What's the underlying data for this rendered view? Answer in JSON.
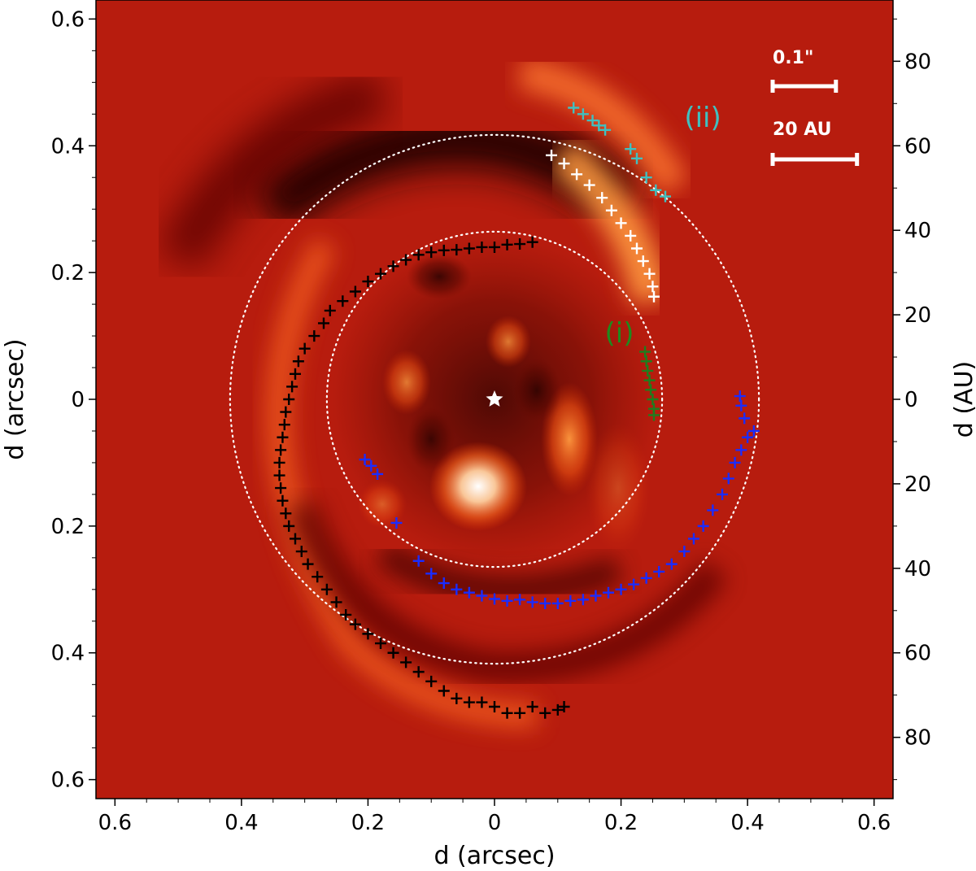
{
  "chart_data": {
    "type": "scatter",
    "title": "",
    "xlabel": "d (arcsec)",
    "ylabel": "d (arcsec)",
    "ylabel_right": "d (AU)",
    "xlim": [
      -0.63,
      0.63
    ],
    "ylim": [
      -0.63,
      0.63
    ],
    "x_ticks": [
      {
        "v": -0.6,
        "label": "0.6"
      },
      {
        "v": -0.4,
        "label": "0.4"
      },
      {
        "v": -0.2,
        "label": "0.2"
      },
      {
        "v": 0,
        "label": "0"
      },
      {
        "v": 0.2,
        "label": "0.2"
      },
      {
        "v": 0.4,
        "label": "0.4"
      },
      {
        "v": 0.6,
        "label": "0.6"
      }
    ],
    "y_ticks": [
      {
        "v": 0.6,
        "label": "0.6"
      },
      {
        "v": 0.4,
        "label": "0.4"
      },
      {
        "v": 0.2,
        "label": "0.2"
      },
      {
        "v": 0,
        "label": "0"
      },
      {
        "v": -0.2,
        "label": "0.2"
      },
      {
        "v": -0.4,
        "label": "0.4"
      },
      {
        "v": -0.6,
        "label": "0.6"
      }
    ],
    "y_ticks_right": [
      {
        "v": 80,
        "label": "80"
      },
      {
        "v": 60,
        "label": "60"
      },
      {
        "v": 40,
        "label": "40"
      },
      {
        "v": 20,
        "label": "20"
      },
      {
        "v": 0,
        "label": "0"
      },
      {
        "v": -20,
        "label": "20"
      },
      {
        "v": -40,
        "label": "40"
      },
      {
        "v": -60,
        "label": "60"
      },
      {
        "v": -80,
        "label": "80"
      }
    ],
    "au_per_arcsec": 150,
    "colormap": [
      "#8a0a00",
      "#b81a00",
      "#e8501a",
      "#ffb070",
      "#ffffff"
    ],
    "background_color": "#b71c0e",
    "circles": [
      {
        "r": 0.265,
        "color": "#ffffff",
        "style": "dotted"
      },
      {
        "r": 0.418,
        "color": "#ffffff",
        "style": "dotted"
      }
    ],
    "star_marker": {
      "x": 0.0,
      "y": 0.0,
      "color": "#ffffff"
    },
    "scale_bars": [
      {
        "label": "0.1\"",
        "length_arcsec": 0.1
      },
      {
        "label": "20 AU",
        "length_arcsec": 0.1333
      }
    ],
    "annotations": [
      {
        "text": "(ii)",
        "x": 0.3,
        "y": 0.43,
        "color": "#40c0c0"
      },
      {
        "text": "(i)",
        "x": 0.2,
        "y": 0.09,
        "color": "#1e8a1e"
      }
    ],
    "series": [
      {
        "color": "#000000",
        "marker": "+",
        "points": [
          [
            0.04,
            0.245
          ],
          [
            0.06,
            0.248
          ],
          [
            0.02,
            0.244
          ],
          [
            0.0,
            0.24
          ],
          [
            -0.02,
            0.24
          ],
          [
            -0.04,
            0.238
          ],
          [
            -0.06,
            0.236
          ],
          [
            -0.08,
            0.235
          ],
          [
            -0.1,
            0.232
          ],
          [
            -0.12,
            0.228
          ],
          [
            -0.14,
            0.22
          ],
          [
            -0.16,
            0.21
          ],
          [
            -0.18,
            0.198
          ],
          [
            -0.2,
            0.186
          ],
          [
            -0.22,
            0.17
          ],
          [
            -0.24,
            0.155
          ],
          [
            -0.26,
            0.14
          ],
          [
            -0.27,
            0.12
          ],
          [
            -0.285,
            0.1
          ],
          [
            -0.3,
            0.08
          ],
          [
            -0.31,
            0.06
          ],
          [
            -0.315,
            0.04
          ],
          [
            -0.32,
            0.02
          ],
          [
            -0.325,
            0.0
          ],
          [
            -0.33,
            -0.02
          ],
          [
            -0.332,
            -0.04
          ],
          [
            -0.335,
            -0.06
          ],
          [
            -0.338,
            -0.08
          ],
          [
            -0.34,
            -0.1
          ],
          [
            -0.34,
            -0.12
          ],
          [
            -0.338,
            -0.14
          ],
          [
            -0.335,
            -0.16
          ],
          [
            -0.33,
            -0.18
          ],
          [
            -0.325,
            -0.2
          ],
          [
            -0.315,
            -0.22
          ],
          [
            -0.305,
            -0.24
          ],
          [
            -0.295,
            -0.26
          ],
          [
            -0.28,
            -0.28
          ],
          [
            -0.265,
            -0.3
          ],
          [
            -0.25,
            -0.32
          ],
          [
            -0.235,
            -0.34
          ],
          [
            -0.22,
            -0.355
          ],
          [
            -0.2,
            -0.37
          ],
          [
            -0.18,
            -0.385
          ],
          [
            -0.16,
            -0.4
          ],
          [
            -0.14,
            -0.415
          ],
          [
            -0.12,
            -0.43
          ],
          [
            -0.1,
            -0.445
          ],
          [
            -0.08,
            -0.46
          ],
          [
            -0.06,
            -0.472
          ],
          [
            -0.04,
            -0.478
          ],
          [
            -0.02,
            -0.478
          ],
          [
            0.0,
            -0.485
          ],
          [
            0.02,
            -0.495
          ],
          [
            0.04,
            -0.495
          ],
          [
            0.06,
            -0.485
          ],
          [
            0.08,
            -0.495
          ],
          [
            0.1,
            -0.49
          ],
          [
            0.11,
            -0.485
          ]
        ]
      },
      {
        "color": "#ffffff",
        "marker": "+",
        "points": [
          [
            0.09,
            0.385
          ],
          [
            0.11,
            0.372
          ],
          [
            0.13,
            0.355
          ],
          [
            0.15,
            0.338
          ],
          [
            0.17,
            0.318
          ],
          [
            0.185,
            0.298
          ],
          [
            0.2,
            0.278
          ],
          [
            0.215,
            0.258
          ],
          [
            0.225,
            0.238
          ],
          [
            0.235,
            0.218
          ],
          [
            0.245,
            0.198
          ],
          [
            0.25,
            0.178
          ],
          [
            0.252,
            0.162
          ]
        ]
      },
      {
        "color": "#40c0c0",
        "marker": "+",
        "points": [
          [
            0.125,
            0.46
          ],
          [
            0.14,
            0.45
          ],
          [
            0.155,
            0.44
          ],
          [
            0.165,
            0.432
          ],
          [
            0.175,
            0.425
          ],
          [
            0.215,
            0.395
          ],
          [
            0.225,
            0.38
          ],
          [
            0.24,
            0.35
          ],
          [
            0.255,
            0.33
          ],
          [
            0.27,
            0.32
          ]
        ]
      },
      {
        "color": "#1e7e1e",
        "marker": "+",
        "points": [
          [
            0.238,
            0.075
          ],
          [
            0.24,
            0.06
          ],
          [
            0.242,
            0.045
          ],
          [
            0.245,
            0.03
          ],
          [
            0.247,
            0.015
          ],
          [
            0.25,
            0.0
          ],
          [
            0.252,
            -0.015
          ],
          [
            0.252,
            -0.025
          ]
        ]
      },
      {
        "color": "#1a2cff",
        "marker": "+",
        "points": [
          [
            -0.205,
            -0.095
          ],
          [
            -0.195,
            -0.105
          ],
          [
            -0.185,
            -0.118
          ],
          [
            -0.155,
            -0.195
          ],
          [
            -0.12,
            -0.255
          ],
          [
            -0.1,
            -0.275
          ],
          [
            -0.08,
            -0.29
          ],
          [
            -0.06,
            -0.3
          ],
          [
            -0.04,
            -0.305
          ],
          [
            -0.02,
            -0.31
          ],
          [
            0.0,
            -0.315
          ],
          [
            0.02,
            -0.318
          ],
          [
            0.04,
            -0.316
          ],
          [
            0.06,
            -0.32
          ],
          [
            0.08,
            -0.322
          ],
          [
            0.1,
            -0.322
          ],
          [
            0.12,
            -0.318
          ],
          [
            0.14,
            -0.316
          ],
          [
            0.16,
            -0.31
          ],
          [
            0.18,
            -0.305
          ],
          [
            0.2,
            -0.3
          ],
          [
            0.22,
            -0.292
          ],
          [
            0.24,
            -0.282
          ],
          [
            0.26,
            -0.272
          ],
          [
            0.28,
            -0.26
          ],
          [
            0.3,
            -0.24
          ],
          [
            0.315,
            -0.22
          ],
          [
            0.33,
            -0.2
          ],
          [
            0.345,
            -0.175
          ],
          [
            0.36,
            -0.15
          ],
          [
            0.37,
            -0.125
          ],
          [
            0.38,
            -0.1
          ],
          [
            0.39,
            -0.08
          ],
          [
            0.4,
            -0.06
          ],
          [
            0.41,
            -0.05
          ],
          [
            0.395,
            -0.03
          ],
          [
            0.39,
            -0.01
          ],
          [
            0.388,
            0.005
          ]
        ]
      }
    ]
  }
}
